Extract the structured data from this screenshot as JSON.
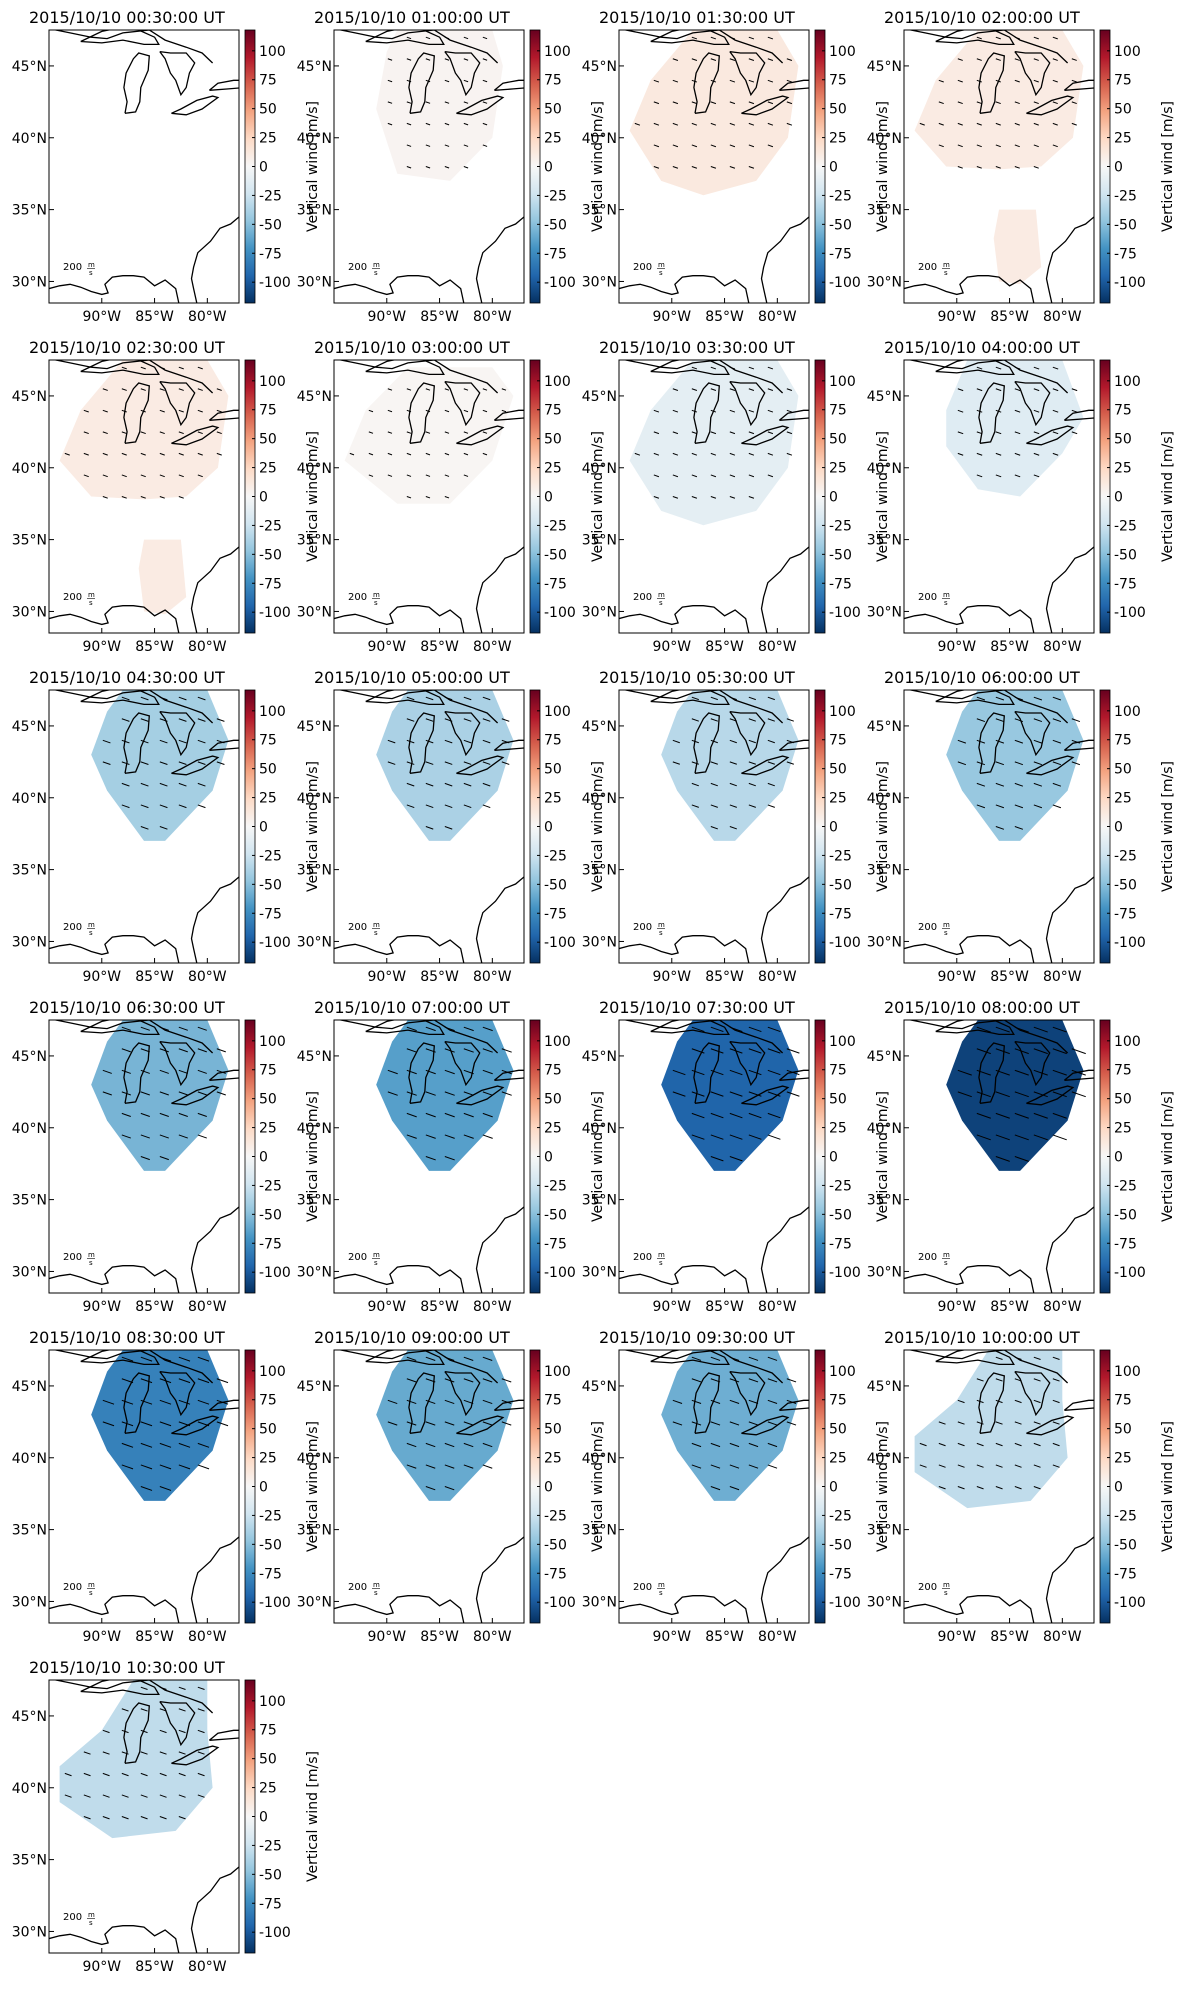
{
  "figure": {
    "colorbar": {
      "label": "Vertical wind [m/s]",
      "ticks": [
        100,
        75,
        50,
        25,
        0,
        -25,
        -50,
        -75,
        -100
      ],
      "range": [
        -118,
        118
      ],
      "colormap": "RdBu_r",
      "colors_low_to_high": [
        "#053061",
        "#2166ac",
        "#4393c3",
        "#92c5de",
        "#d1e5f0",
        "#f7f7f7",
        "#fddbc7",
        "#f4a582",
        "#d6604d",
        "#b2182b",
        "#67001f"
      ]
    },
    "axes": {
      "x_ticks": [
        "90°W",
        "85°W",
        "80°W"
      ],
      "y_ticks": [
        "45°N",
        "40°N",
        "35°N",
        "30°N"
      ],
      "lon_range": [
        -95,
        -77
      ],
      "lat_range": [
        28.5,
        47.5
      ]
    },
    "wind_scale_label": "200 m/s",
    "coastline_color": "#000000"
  },
  "chart_data": {
    "type": "heatmap",
    "description_field": "vertical wind field per timestamp (region-mean value, m/s)",
    "colorbar_label": "Vertical wind [m/s]",
    "colorbar_ticks": [
      100,
      75,
      50,
      25,
      0,
      -25,
      -50,
      -75,
      -100
    ],
    "panels": [
      {
        "title": "2015/10/10 00:30:00 UT",
        "value": null,
        "region": "none"
      },
      {
        "title": "2015/10/10 01:00:00 UT",
        "value": 3,
        "region": "north"
      },
      {
        "title": "2015/10/10 01:30:00 UT",
        "value": 12,
        "region": "wide"
      },
      {
        "title": "2015/10/10 02:00:00 UT",
        "value": 10,
        "region": "wide_south"
      },
      {
        "title": "2015/10/10 02:30:00 UT",
        "value": 10,
        "region": "wide_south"
      },
      {
        "title": "2015/10/10 03:00:00 UT",
        "value": 2,
        "region": "wide_mid"
      },
      {
        "title": "2015/10/10 03:30:00 UT",
        "value": -12,
        "region": "wide"
      },
      {
        "title": "2015/10/10 04:00:00 UT",
        "value": -15,
        "region": "mid"
      },
      {
        "title": "2015/10/10 04:30:00 UT",
        "value": -40,
        "region": "diamond"
      },
      {
        "title": "2015/10/10 05:00:00 UT",
        "value": -38,
        "region": "diamond"
      },
      {
        "title": "2015/10/10 05:30:00 UT",
        "value": -33,
        "region": "diamond"
      },
      {
        "title": "2015/10/10 06:00:00 UT",
        "value": -45,
        "region": "diamond"
      },
      {
        "title": "2015/10/10 06:30:00 UT",
        "value": -55,
        "region": "diamond"
      },
      {
        "title": "2015/10/10 07:00:00 UT",
        "value": -65,
        "region": "diamond"
      },
      {
        "title": "2015/10/10 07:30:00 UT",
        "value": -95,
        "region": "diamond"
      },
      {
        "title": "2015/10/10 08:00:00 UT",
        "value": -110,
        "region": "diamond"
      },
      {
        "title": "2015/10/10 08:30:00 UT",
        "value": -80,
        "region": "diamond"
      },
      {
        "title": "2015/10/10 09:00:00 UT",
        "value": -60,
        "region": "diamond"
      },
      {
        "title": "2015/10/10 09:30:00 UT",
        "value": -58,
        "region": "diamond"
      },
      {
        "title": "2015/10/10 10:00:00 UT",
        "value": -30,
        "region": "wide_lower"
      },
      {
        "title": "2015/10/10 10:30:00 UT",
        "value": -30,
        "region": "wide_lower"
      }
    ]
  }
}
